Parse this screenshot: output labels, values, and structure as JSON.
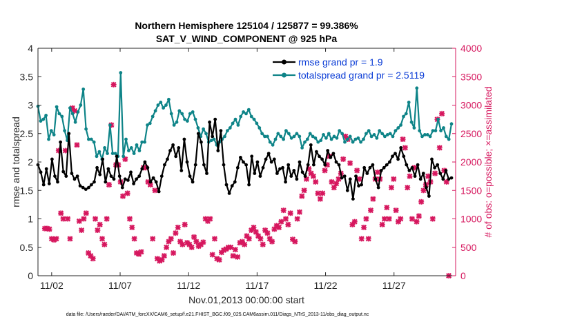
{
  "chart_data": {
    "type": "line",
    "title": "Northern Hemisphere 125104 / 125877 = 99.386%",
    "subtitle": "SAT_V_WIND_COMPONENT @ 925 hPa",
    "xlabel": "Nov.01,2013 00:00:00 start",
    "ylabel": "rmse and totalspread",
    "ylabel_right": "# of obs: o=possible; ×=assimilated",
    "x_tick_labels": [
      "11/02",
      "11/07",
      "11/12",
      "11/17",
      "11/22",
      "11/27"
    ],
    "x_tick_days": [
      1,
      6,
      11,
      16,
      21,
      26
    ],
    "xlim_days": [
      0,
      30.5
    ],
    "ylim": [
      0,
      4
    ],
    "y_ticks": [
      "0",
      "0.5",
      "1",
      "1.5",
      "2",
      "2.5",
      "3",
      "3.5",
      "4"
    ],
    "ylim_right": [
      0,
      4000
    ],
    "y_ticks_right": [
      "0",
      "500",
      "1000",
      "1500",
      "2000",
      "2500",
      "3000",
      "3500",
      "4000"
    ],
    "grid": false,
    "legend_position": "top-right",
    "colors": {
      "rmse": "#000000",
      "totalspread": "#0e8488",
      "obs": "#d6175e"
    },
    "series": [
      {
        "name": "rmse grand pr = 1.9",
        "axis": "left",
        "values": [
          1.95,
          1.82,
          1.6,
          1.88,
          1.62,
          2.05,
          1.75,
          1.65,
          2.35,
          1.83,
          1.75,
          2.5,
          1.8,
          1.7,
          1.75,
          1.58,
          1.55,
          1.52,
          1.55,
          1.6,
          1.65,
          1.9,
          1.78,
          2.05,
          1.65,
          1.88,
          1.75,
          1.7,
          2.1,
          1.75,
          1.55,
          1.7,
          1.68,
          1.82,
          1.62,
          1.7,
          1.75,
          1.88,
          2.0,
          1.9,
          1.65,
          1.72,
          1.65,
          1.48,
          1.75,
          1.95,
          2.05,
          2.2,
          2.3,
          2.1,
          2.25,
          1.85,
          2.4,
          2.0,
          1.75,
          1.65,
          1.95,
          2.5,
          2.35,
          1.95,
          1.8,
          2.7,
          2.45,
          2.75,
          2.2,
          2.55,
          1.95,
          1.6,
          1.45,
          1.58,
          1.65,
          1.9,
          2.08,
          2.0,
          1.95,
          1.6,
          2.1,
          1.8,
          2.0,
          1.75,
          1.9,
          2.05,
          2.15,
          2.0,
          2.05,
          1.8,
          1.88,
          1.9,
          1.65,
          1.95,
          1.75,
          1.85,
          1.7,
          2.0,
          1.82,
          1.75,
          1.95,
          2.3,
          1.95,
          2.18,
          2.1,
          2.05,
          1.95,
          2.2,
          2.08,
          2.15,
          2.0,
          1.95,
          1.72,
          1.75,
          1.5,
          1.7,
          1.35,
          1.75,
          1.58,
          1.6,
          1.9,
          1.8,
          1.9,
          1.95,
          1.7,
          1.55,
          1.85,
          1.9,
          1.95,
          2.0,
          2.1,
          2.15,
          2.05,
          2.25,
          2.1,
          1.95,
          1.85,
          1.9,
          1.75,
          1.95,
          1.7,
          1.8,
          1.55,
          1.4,
          2.05,
          1.9,
          1.95,
          1.8,
          1.7,
          1.85,
          1.7,
          1.72
        ]
      },
      {
        "name": "totalspread grand pr = 2.5119",
        "axis": "left",
        "values": [
          2.98,
          2.72,
          2.75,
          2.82,
          2.4,
          2.55,
          2.48,
          2.97,
          2.85,
          2.8,
          2.55,
          2.38,
          2.95,
          2.85,
          2.7,
          2.88,
          3.0,
          3.28,
          2.58,
          2.4,
          2.4,
          2.35,
          2.1,
          2.18,
          2.05,
          2.25,
          2.15,
          2.65,
          2.15,
          2.15,
          2.1,
          3.57,
          2.1,
          2.4,
          2.2,
          2.25,
          2.15,
          2.3,
          2.2,
          2.35,
          2.35,
          2.65,
          2.68,
          2.8,
          2.9,
          3.0,
          3.05,
          2.95,
          3.0,
          3.1,
          2.85,
          2.65,
          2.7,
          2.9,
          2.85,
          2.75,
          2.72,
          2.85,
          2.88,
          2.75,
          2.6,
          2.45,
          2.58,
          2.5,
          2.35,
          2.38,
          2.4,
          2.3,
          2.35,
          2.4,
          2.45,
          2.55,
          2.6,
          2.68,
          2.75,
          2.65,
          2.8,
          2.88,
          2.85,
          2.92,
          2.8,
          2.75,
          2.68,
          2.6,
          2.5,
          2.45,
          2.45,
          2.35,
          2.3,
          2.4,
          2.5,
          2.45,
          2.4,
          2.55,
          2.5,
          2.42,
          2.45,
          2.5,
          2.45,
          2.25,
          2.35,
          2.4,
          2.5,
          2.45,
          2.42,
          2.35,
          2.38,
          2.48,
          2.42,
          2.5,
          2.4,
          2.45,
          2.42,
          2.55,
          2.5,
          2.35,
          2.4,
          2.45,
          2.35,
          2.4,
          2.42,
          2.35,
          2.4,
          2.5,
          2.55,
          2.45,
          2.48,
          2.42,
          2.55,
          2.5,
          2.45,
          2.48,
          2.5,
          2.45,
          2.55,
          2.6,
          2.65,
          2.8,
          2.85,
          3.05,
          2.7,
          2.6,
          3.3,
          2.55,
          2.45,
          2.48,
          2.48,
          2.45,
          2.55,
          2.55,
          2.75,
          2.55,
          2.6,
          2.45,
          2.4,
          2.67
        ]
      },
      {
        "name": "obs assimilated",
        "axis": "right",
        "values": [
          830,
          830,
          820,
          650,
          630,
          650,
          2200,
          1100,
          1000,
          2200,
          1000,
          650,
          2950,
          2900,
          2300,
          960,
          800,
          1000,
          1100,
          400,
          350,
          300,
          1000,
          800,
          900,
          650,
          550,
          1000,
          1600,
          2650,
          3360,
          1950,
          1950,
          1650,
          1400,
          2050,
          1450,
          1000,
          850,
          650,
          400,
          380,
          420,
          1900,
          1900,
          1650,
          1600,
          650,
          1500,
          300,
          260,
          280,
          350,
          500,
          600,
          650,
          400,
          750,
          850,
          600,
          550,
          900,
          580,
          550,
          500,
          680,
          600,
          520,
          550,
          590,
          1000,
          960,
          1000,
          370,
          650,
          300,
          280,
          410,
          450,
          470,
          500,
          500,
          350,
          460,
          330,
          580,
          600,
          550,
          700,
          650,
          800,
          850,
          770,
          700,
          650,
          550,
          800,
          750,
          650,
          600,
          820,
          880,
          850,
          950,
          1150,
          1000,
          900,
          1100,
          640,
          600,
          1000,
          1120,
          1400,
          1500,
          1700,
          1880,
          1800,
          1750,
          1650,
          1450,
          1350,
          1450,
          1850,
          1950,
          2100,
          1650,
          1550,
          1620,
          1700,
          1800,
          2050,
          2450,
          2400,
          1980,
          900,
          950,
          1850,
          1700,
          650,
          850,
          1000,
          650,
          1150,
          1350,
          1700,
          1820,
          1700,
          900,
          1000,
          1200,
          1000,
          1550,
          1700,
          1150,
          950,
          1000,
          2400,
          2250,
          1550,
          1750,
          1000,
          1900,
          950,
          1050,
          1300,
          1500,
          1600,
          1750,
          1650,
          1000,
          1800,
          2750,
          2250,
          2850,
          1850,
          1650,
          0
        ]
      }
    ]
  },
  "footer_text": "data file: /Users/raeder/DAI/ATM_forcXX/CAM6_setup/f.e21.FHIST_BGC.f09_025.CAM6assim.011/Diags_NTrS_2013-11/obs_diag_output.nc"
}
